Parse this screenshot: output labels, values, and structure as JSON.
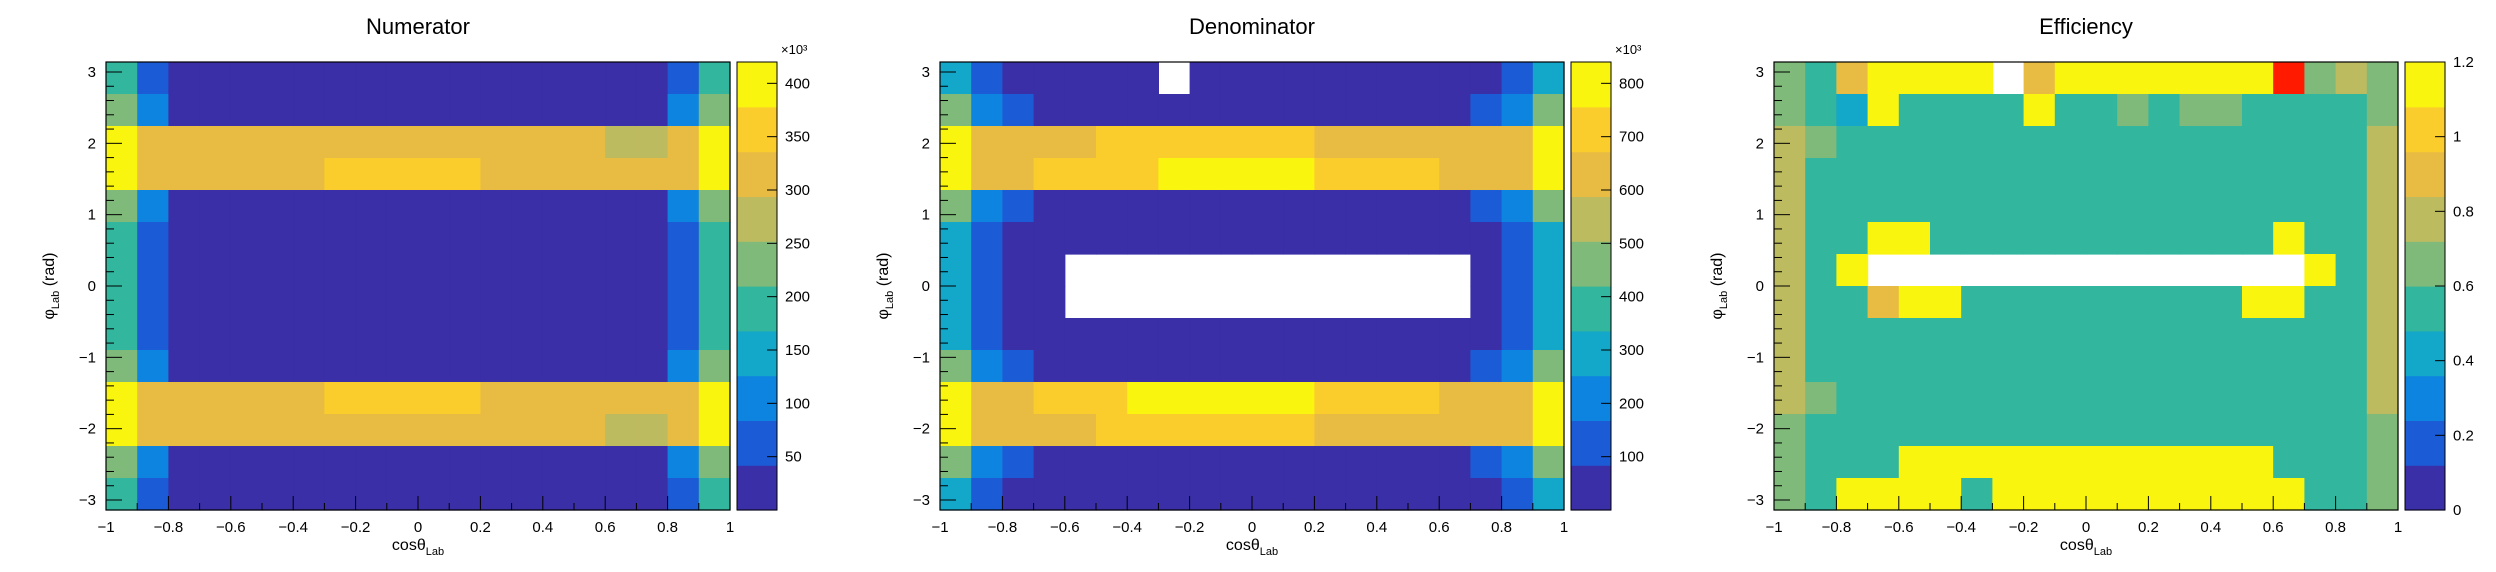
{
  "panels": [
    {
      "title": "Numerator"
    },
    {
      "title": "Denominator"
    },
    {
      "title": "Efficiency"
    }
  ],
  "axis_text": {
    "x_main": "cosθ",
    "x_sub": "Lab",
    "y_main": "φ",
    "y_sub": "Lab",
    "y_unit": "(rad)"
  },
  "palette": [
    "#3a2fa6",
    "#1b5bd6",
    "#0d85e0",
    "#13a7c9",
    "#33b69e",
    "#7fba7a",
    "#bdbb5f",
    "#e8bc43",
    "#fbcd2c",
    "#f9f50f"
  ],
  "chart_data": [
    {
      "type": "heatmap",
      "title": "Numerator",
      "xlabel": "cosθ_Lab",
      "ylabel": "φ_Lab (rad)",
      "xlim": [
        -1,
        1
      ],
      "ylim": [
        -3.14,
        3.14
      ],
      "x_ticks": [
        "−1",
        "−0.8",
        "−0.6",
        "−0.4",
        "−0.2",
        "0",
        "0.2",
        "0.4",
        "0.6",
        "0.8",
        "1"
      ],
      "y_ticks": [
        "−3",
        "−2",
        "−1",
        "0",
        "1",
        "2",
        "3"
      ],
      "colorbar": {
        "min": 0,
        "max": 420000,
        "exponent": "×10³",
        "ticks": [
          50,
          100,
          150,
          200,
          250,
          300,
          350,
          400
        ]
      },
      "bins": {
        "nx": 20,
        "ny": 14
      },
      "z_thousands": [
        [
          180,
          60,
          0,
          0,
          0,
          0,
          0,
          0,
          0,
          0,
          0,
          0,
          0,
          0,
          0,
          0,
          0,
          0,
          60,
          180
        ],
        [
          230,
          90,
          20,
          0,
          0,
          0,
          0,
          0,
          0,
          0,
          0,
          0,
          0,
          0,
          0,
          0,
          0,
          20,
          90,
          230
        ],
        [
          400,
          320,
          300,
          310,
          320,
          300,
          300,
          300,
          310,
          300,
          300,
          300,
          310,
          300,
          300,
          300,
          290,
          290,
          320,
          400
        ],
        [
          410,
          330,
          320,
          320,
          320,
          330,
          330,
          360,
          360,
          360,
          360,
          340,
          330,
          330,
          330,
          320,
          320,
          320,
          330,
          410
        ],
        [
          230,
          90,
          40,
          40,
          40,
          40,
          40,
          40,
          40,
          40,
          40,
          40,
          40,
          40,
          40,
          40,
          40,
          40,
          90,
          230
        ],
        [
          180,
          60,
          0,
          0,
          0,
          0,
          0,
          0,
          0,
          0,
          0,
          0,
          0,
          0,
          0,
          0,
          0,
          0,
          60,
          180
        ],
        [
          180,
          60,
          0,
          0,
          0,
          0,
          0,
          0,
          0,
          0,
          0,
          0,
          0,
          0,
          0,
          0,
          0,
          0,
          60,
          180
        ],
        [
          180,
          60,
          0,
          0,
          0,
          0,
          0,
          0,
          0,
          0,
          0,
          0,
          0,
          0,
          0,
          0,
          0,
          0,
          60,
          180
        ],
        [
          180,
          60,
          0,
          0,
          0,
          0,
          0,
          0,
          0,
          0,
          0,
          0,
          0,
          0,
          0,
          0,
          0,
          0,
          60,
          180
        ],
        [
          230,
          90,
          40,
          40,
          40,
          40,
          40,
          40,
          40,
          40,
          40,
          40,
          40,
          40,
          40,
          40,
          40,
          40,
          90,
          230
        ],
        [
          400,
          320,
          320,
          320,
          330,
          330,
          330,
          350,
          350,
          350,
          340,
          340,
          330,
          330,
          330,
          320,
          320,
          320,
          320,
          400
        ],
        [
          410,
          330,
          300,
          300,
          310,
          300,
          300,
          300,
          310,
          300,
          300,
          300,
          310,
          300,
          300,
          300,
          290,
          290,
          320,
          410
        ],
        [
          230,
          90,
          20,
          0,
          0,
          0,
          0,
          0,
          0,
          0,
          0,
          0,
          0,
          0,
          0,
          0,
          0,
          20,
          90,
          230
        ],
        [
          180,
          60,
          0,
          0,
          0,
          0,
          0,
          0,
          0,
          0,
          0,
          0,
          0,
          0,
          0,
          0,
          0,
          0,
          60,
          180
        ]
      ]
    },
    {
      "type": "heatmap",
      "title": "Denominator",
      "xlabel": "cosθ_Lab",
      "ylabel": "φ_Lab (rad)",
      "xlim": [
        -1,
        1
      ],
      "ylim": [
        -3.14,
        3.14
      ],
      "x_ticks": [
        "−1",
        "−0.8",
        "−0.6",
        "−0.4",
        "−0.2",
        "0",
        "0.2",
        "0.4",
        "0.6",
        "0.8",
        "1"
      ],
      "y_ticks": [
        "−3",
        "−2",
        "−1",
        "0",
        "1",
        "2",
        "3"
      ],
      "colorbar": {
        "min": 0,
        "max": 840000,
        "exponent": "×10³",
        "ticks": [
          100,
          200,
          300,
          400,
          500,
          600,
          700,
          800
        ]
      },
      "bins": {
        "nx": 20,
        "ny": 14
      },
      "empty_value": null,
      "z_thousands": [
        [
          330,
          140,
          40,
          40,
          40,
          40,
          40,
          null,
          40,
          40,
          40,
          40,
          40,
          40,
          40,
          40,
          40,
          40,
          140,
          330
        ],
        [
          450,
          220,
          120,
          80,
          60,
          60,
          60,
          60,
          60,
          60,
          60,
          60,
          60,
          60,
          60,
          60,
          80,
          120,
          220,
          450
        ],
        [
          800,
          650,
          640,
          650,
          660,
          690,
          690,
          690,
          680,
          700,
          690,
          680,
          660,
          650,
          650,
          650,
          640,
          640,
          660,
          800
        ],
        [
          810,
          660,
          660,
          680,
          700,
          720,
          740,
          760,
          760,
          760,
          780,
          760,
          740,
          720,
          700,
          680,
          670,
          660,
          660,
          810
        ],
        [
          450,
          220,
          120,
          80,
          70,
          70,
          70,
          70,
          70,
          70,
          70,
          70,
          70,
          70,
          70,
          70,
          80,
          120,
          220,
          450
        ],
        [
          330,
          140,
          40,
          0,
          0,
          0,
          40,
          40,
          40,
          40,
          40,
          40,
          40,
          40,
          40,
          40,
          0,
          40,
          140,
          330
        ],
        [
          330,
          140,
          40,
          0,
          null,
          null,
          null,
          null,
          null,
          null,
          null,
          null,
          null,
          null,
          null,
          null,
          null,
          40,
          140,
          330
        ],
        [
          330,
          140,
          40,
          0,
          null,
          null,
          null,
          null,
          null,
          null,
          null,
          null,
          null,
          null,
          null,
          null,
          null,
          40,
          140,
          330
        ],
        [
          330,
          140,
          40,
          0,
          0,
          0,
          40,
          40,
          40,
          40,
          40,
          40,
          40,
          40,
          40,
          40,
          0,
          40,
          140,
          330
        ],
        [
          450,
          220,
          120,
          80,
          70,
          70,
          70,
          70,
          70,
          70,
          70,
          70,
          70,
          70,
          70,
          70,
          80,
          120,
          220,
          450
        ],
        [
          810,
          660,
          660,
          680,
          700,
          730,
          760,
          790,
          800,
          800,
          790,
          760,
          740,
          720,
          700,
          680,
          670,
          660,
          660,
          810
        ],
        [
          800,
          650,
          640,
          650,
          660,
          690,
          690,
          690,
          680,
          700,
          690,
          680,
          660,
          650,
          650,
          650,
          640,
          640,
          660,
          800
        ],
        [
          450,
          220,
          120,
          80,
          60,
          60,
          60,
          60,
          60,
          60,
          60,
          60,
          60,
          60,
          60,
          60,
          80,
          120,
          220,
          450
        ],
        [
          330,
          140,
          40,
          40,
          40,
          40,
          40,
          40,
          40,
          40,
          40,
          40,
          40,
          40,
          40,
          40,
          40,
          40,
          140,
          330
        ]
      ]
    },
    {
      "type": "heatmap",
      "title": "Efficiency",
      "xlabel": "cosθ_Lab",
      "ylabel": "φ_Lab (rad)",
      "xlim": [
        -1,
        1
      ],
      "ylim": [
        -3.14,
        3.14
      ],
      "x_ticks": [
        "−1",
        "−0.8",
        "−0.6",
        "−0.4",
        "−0.2",
        "0",
        "0.2",
        "0.4",
        "0.6",
        "0.8",
        "1"
      ],
      "y_ticks": [
        "−3",
        "−2",
        "−1",
        "0",
        "1",
        "2",
        "3"
      ],
      "colorbar": {
        "min": 0,
        "max": 1.2,
        "ticks": [
          "0",
          "0.2",
          "0.4",
          "0.6",
          "0.8",
          "1",
          "1.2"
        ]
      },
      "bins": {
        "nx": 20,
        "ny": 14
      },
      "empty_value": null,
      "overflow_color": "#ff1a00",
      "z": [
        [
          0.62,
          0.55,
          0.85,
          1.15,
          1.15,
          1.15,
          1.15,
          null,
          0.92,
          1.15,
          1.15,
          1.15,
          1.15,
          1.15,
          1.15,
          1.15,
          1.3,
          0.65,
          0.75,
          0.62
        ],
        [
          0.62,
          0.55,
          0.4,
          1.1,
          0.5,
          0.5,
          0.5,
          0.5,
          1.1,
          0.5,
          0.5,
          0.6,
          0.5,
          0.62,
          0.6,
          0.52,
          0.5,
          0.5,
          0.5,
          0.62
        ],
        [
          0.8,
          0.6,
          0.5,
          0.5,
          0.5,
          0.52,
          0.5,
          0.52,
          0.55,
          0.5,
          0.5,
          0.5,
          0.55,
          0.5,
          0.5,
          0.55,
          0.5,
          0.5,
          0.55,
          0.8
        ],
        [
          0.82,
          0.58,
          0.55,
          0.55,
          0.55,
          0.5,
          0.5,
          0.5,
          0.5,
          0.5,
          0.5,
          0.5,
          0.5,
          0.5,
          0.5,
          0.55,
          0.55,
          0.55,
          0.55,
          0.82
        ],
        [
          0.82,
          0.58,
          0.55,
          0.5,
          0.5,
          0.5,
          0.5,
          0.5,
          0.5,
          0.5,
          0.5,
          0.5,
          0.5,
          0.5,
          0.5,
          0.5,
          0.5,
          0.55,
          0.55,
          0.82
        ],
        [
          0.82,
          0.58,
          0.5,
          1.1,
          1.1,
          0.55,
          0.55,
          0.55,
          0.55,
          0.55,
          0.55,
          0.55,
          0.55,
          0.55,
          0.55,
          0.55,
          1.1,
          0.5,
          0.58,
          0.82
        ],
        [
          0.82,
          0.58,
          1.1,
          null,
          null,
          null,
          null,
          null,
          null,
          null,
          null,
          null,
          null,
          null,
          null,
          null,
          null,
          1.1,
          0.58,
          0.82
        ],
        [
          0.82,
          0.58,
          0.5,
          0.88,
          1.1,
          1.1,
          0.55,
          0.55,
          0.55,
          0.55,
          0.55,
          0.55,
          0.55,
          0.55,
          0.55,
          1.1,
          1.1,
          0.5,
          0.58,
          0.82
        ],
        [
          0.82,
          0.58,
          0.55,
          0.5,
          0.5,
          0.5,
          0.5,
          0.5,
          0.5,
          0.5,
          0.5,
          0.5,
          0.5,
          0.5,
          0.5,
          0.5,
          0.5,
          0.55,
          0.55,
          0.82
        ],
        [
          0.82,
          0.58,
          0.55,
          0.55,
          0.55,
          0.5,
          0.5,
          0.5,
          0.5,
          0.5,
          0.5,
          0.5,
          0.5,
          0.5,
          0.5,
          0.5,
          0.55,
          0.55,
          0.55,
          0.82
        ],
        [
          0.8,
          0.6,
          0.5,
          0.5,
          0.5,
          0.52,
          0.5,
          0.52,
          0.55,
          0.5,
          0.5,
          0.5,
          0.55,
          0.5,
          0.5,
          0.55,
          0.5,
          0.5,
          0.55,
          0.8
        ],
        [
          0.62,
          0.55,
          0.5,
          0.5,
          0.5,
          0.5,
          0.5,
          0.5,
          0.5,
          0.5,
          0.5,
          0.5,
          0.5,
          0.5,
          0.5,
          0.5,
          0.5,
          0.5,
          0.55,
          0.62
        ],
        [
          0.62,
          0.55,
          0.5,
          0.5,
          1.15,
          1.15,
          1.15,
          1.15,
          1.15,
          1.15,
          1.15,
          1.15,
          1.15,
          1.15,
          1.15,
          1.15,
          0.5,
          0.5,
          0.55,
          0.62
        ],
        [
          0.62,
          0.55,
          1.15,
          1.15,
          1.15,
          1.15,
          0.55,
          1.15,
          1.15,
          1.15,
          1.15,
          1.15,
          1.15,
          1.15,
          1.15,
          1.15,
          1.15,
          0.55,
          0.55,
          0.62
        ]
      ]
    }
  ]
}
